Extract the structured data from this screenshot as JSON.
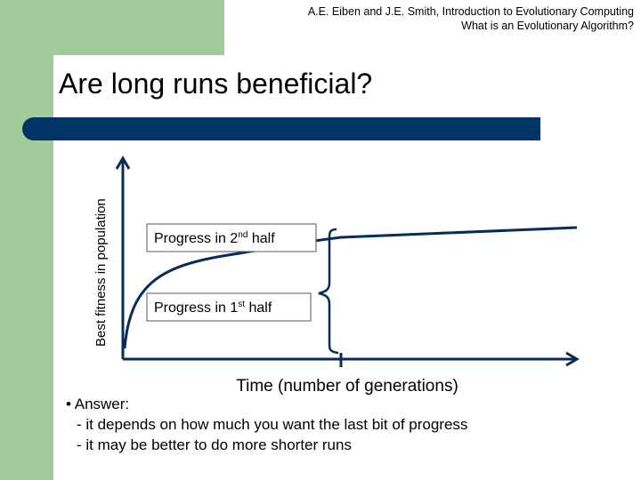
{
  "header": {
    "line1": "A.E. Eiben and J.E. Smith, Introduction to Evolutionary Computing",
    "line2": "What is an Evolutionary Algorithm?"
  },
  "title": "Are long runs beneficial?",
  "diagram": {
    "y_axis_label": "Best fitness in population",
    "x_axis_label": "Time (number of generations)",
    "box_second_half": {
      "text": "Progress in 2",
      "sup": "nd",
      "tail": " half"
    },
    "box_first_half": {
      "text": "Progress in 1",
      "sup": "st",
      "tail": " half"
    }
  },
  "answer": {
    "heading": "• Answer:",
    "lines": [
      "- it depends on how much you want the last bit of progress",
      "- it may be better to do more shorter runs"
    ]
  }
}
